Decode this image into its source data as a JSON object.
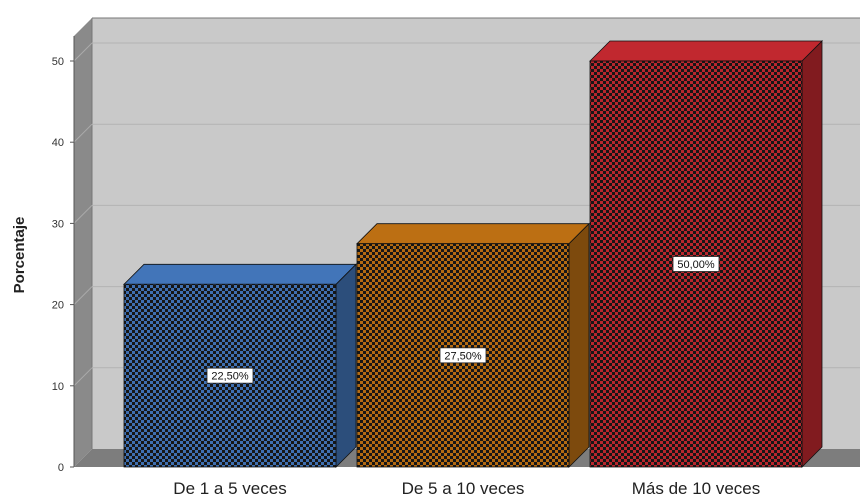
{
  "chart_data": {
    "type": "bar",
    "style": "3d",
    "categories": [
      "De 1 a 5 veces",
      "De 5 a 10 veces",
      "Más de 10 veces"
    ],
    "values": [
      22.5,
      27.5,
      50.0
    ],
    "data_labels": [
      "22,50%",
      "27,50%",
      "50,00%"
    ],
    "colors": [
      "#3f6fb0",
      "#b36a12",
      "#b8262d"
    ],
    "pattern": "checkered",
    "ylabel": "Porcentaje",
    "xlabel": "",
    "ylim": [
      0,
      50
    ],
    "yticks": [
      0,
      10,
      20,
      30,
      40,
      50
    ],
    "grid": true,
    "legend": "none",
    "background_color": "#c8c8c8"
  }
}
